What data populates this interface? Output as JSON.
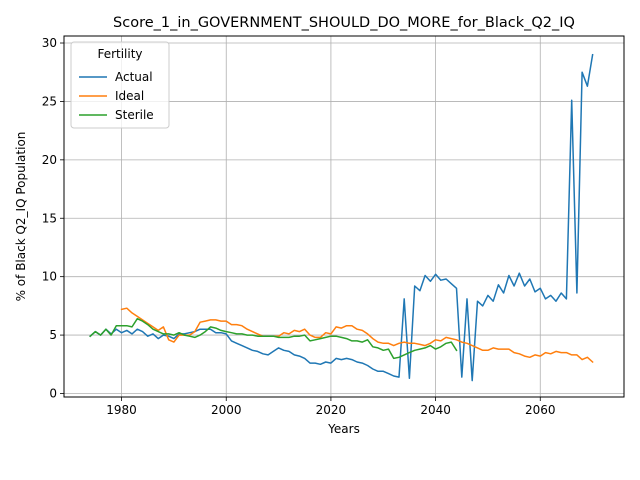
{
  "chart_data": {
    "type": "line",
    "title": "Score_1_in_GOVERNMENT_SHOULD_DO_MORE_for_Black_Q2_IQ",
    "xlabel": "Years",
    "ylabel": "% of Black Q2_IQ Population",
    "xlim": [
      1969,
      2076
    ],
    "ylim": [
      -0.3,
      30.6
    ],
    "xticks": [
      1980,
      2000,
      2020,
      2040,
      2060
    ],
    "yticks": [
      0,
      5,
      10,
      15,
      20,
      25,
      30
    ],
    "grid": true,
    "legend": {
      "title": "Fertility",
      "position": "top-left"
    },
    "series": [
      {
        "name": "Actual",
        "color": "#1f77b4",
        "points": [
          [
            1974,
            4.9
          ],
          [
            1975,
            5.3
          ],
          [
            1976,
            5.0
          ],
          [
            1977,
            5.5
          ],
          [
            1978,
            5.1
          ],
          [
            1979,
            5.5
          ],
          [
            1980,
            5.2
          ],
          [
            1981,
            5.4
          ],
          [
            1982,
            5.1
          ],
          [
            1983,
            5.5
          ],
          [
            1984,
            5.3
          ],
          [
            1985,
            4.9
          ],
          [
            1986,
            5.1
          ],
          [
            1987,
            4.7
          ],
          [
            1988,
            5.0
          ],
          [
            1989,
            4.9
          ],
          [
            1990,
            4.7
          ],
          [
            1991,
            5.1
          ],
          [
            1992,
            5.1
          ],
          [
            1993,
            5.2
          ],
          [
            1994,
            5.3
          ],
          [
            1995,
            5.5
          ],
          [
            1996,
            5.5
          ],
          [
            1997,
            5.5
          ],
          [
            1998,
            5.2
          ],
          [
            1999,
            5.2
          ],
          [
            2000,
            5.1
          ],
          [
            2001,
            4.5
          ],
          [
            2002,
            4.3
          ],
          [
            2003,
            4.1
          ],
          [
            2004,
            3.9
          ],
          [
            2005,
            3.7
          ],
          [
            2006,
            3.6
          ],
          [
            2007,
            3.4
          ],
          [
            2008,
            3.3
          ],
          [
            2009,
            3.6
          ],
          [
            2010,
            3.9
          ],
          [
            2011,
            3.7
          ],
          [
            2012,
            3.6
          ],
          [
            2013,
            3.3
          ],
          [
            2014,
            3.2
          ],
          [
            2015,
            3.0
          ],
          [
            2016,
            2.6
          ],
          [
            2017,
            2.6
          ],
          [
            2018,
            2.5
          ],
          [
            2019,
            2.7
          ],
          [
            2020,
            2.6
          ],
          [
            2021,
            3.0
          ],
          [
            2022,
            2.9
          ],
          [
            2023,
            3.0
          ],
          [
            2024,
            2.9
          ],
          [
            2025,
            2.7
          ],
          [
            2026,
            2.6
          ],
          [
            2027,
            2.4
          ],
          [
            2028,
            2.1
          ],
          [
            2029,
            1.9
          ],
          [
            2030,
            1.9
          ],
          [
            2031,
            1.7
          ],
          [
            2032,
            1.5
          ],
          [
            2033,
            1.4
          ],
          [
            2034,
            8.1
          ],
          [
            2035,
            1.3
          ],
          [
            2036,
            9.2
          ],
          [
            2037,
            8.8
          ],
          [
            2038,
            10.1
          ],
          [
            2039,
            9.6
          ],
          [
            2040,
            10.2
          ],
          [
            2041,
            9.7
          ],
          [
            2042,
            9.8
          ],
          [
            2043,
            9.4
          ],
          [
            2044,
            9.0
          ],
          [
            2045,
            1.4
          ],
          [
            2046,
            8.1
          ],
          [
            2047,
            1.1
          ],
          [
            2048,
            7.9
          ],
          [
            2049,
            7.5
          ],
          [
            2050,
            8.4
          ],
          [
            2051,
            7.9
          ],
          [
            2052,
            9.3
          ],
          [
            2053,
            8.6
          ],
          [
            2054,
            10.1
          ],
          [
            2055,
            9.2
          ],
          [
            2056,
            10.3
          ],
          [
            2057,
            9.2
          ],
          [
            2058,
            9.8
          ],
          [
            2059,
            8.7
          ],
          [
            2060,
            9.0
          ],
          [
            2061,
            8.1
          ],
          [
            2062,
            8.4
          ],
          [
            2063,
            7.9
          ],
          [
            2064,
            8.6
          ],
          [
            2065,
            8.1
          ],
          [
            2066,
            25.1
          ],
          [
            2067,
            8.6
          ],
          [
            2068,
            27.5
          ],
          [
            2069,
            26.3
          ],
          [
            2070,
            29.0
          ]
        ]
      },
      {
        "name": "Ideal",
        "color": "#ff7f0e",
        "points": [
          [
            1980,
            7.2
          ],
          [
            1981,
            7.3
          ],
          [
            1982,
            6.9
          ],
          [
            1983,
            6.6
          ],
          [
            1984,
            6.3
          ],
          [
            1985,
            6.0
          ],
          [
            1986,
            5.7
          ],
          [
            1987,
            5.4
          ],
          [
            1988,
            5.7
          ],
          [
            1989,
            4.6
          ],
          [
            1990,
            4.4
          ],
          [
            1991,
            5.0
          ],
          [
            1992,
            5.0
          ],
          [
            1993,
            5.0
          ],
          [
            1994,
            5.3
          ],
          [
            1995,
            6.1
          ],
          [
            1996,
            6.2
          ],
          [
            1997,
            6.3
          ],
          [
            1998,
            6.3
          ],
          [
            1999,
            6.2
          ],
          [
            2000,
            6.2
          ],
          [
            2001,
            5.9
          ],
          [
            2002,
            5.9
          ],
          [
            2003,
            5.8
          ],
          [
            2004,
            5.5
          ],
          [
            2005,
            5.3
          ],
          [
            2006,
            5.1
          ],
          [
            2007,
            4.9
          ],
          [
            2008,
            4.9
          ],
          [
            2009,
            4.9
          ],
          [
            2010,
            4.9
          ],
          [
            2011,
            5.2
          ],
          [
            2012,
            5.1
          ],
          [
            2013,
            5.4
          ],
          [
            2014,
            5.3
          ],
          [
            2015,
            5.5
          ],
          [
            2016,
            5.0
          ],
          [
            2017,
            4.8
          ],
          [
            2018,
            4.8
          ],
          [
            2019,
            5.2
          ],
          [
            2020,
            5.1
          ],
          [
            2021,
            5.7
          ],
          [
            2022,
            5.6
          ],
          [
            2023,
            5.8
          ],
          [
            2024,
            5.8
          ],
          [
            2025,
            5.5
          ],
          [
            2026,
            5.4
          ],
          [
            2027,
            5.1
          ],
          [
            2028,
            4.7
          ],
          [
            2029,
            4.4
          ],
          [
            2030,
            4.3
          ],
          [
            2031,
            4.3
          ],
          [
            2032,
            4.1
          ],
          [
            2033,
            4.3
          ],
          [
            2034,
            4.4
          ],
          [
            2035,
            4.3
          ],
          [
            2036,
            4.3
          ],
          [
            2037,
            4.2
          ],
          [
            2038,
            4.1
          ],
          [
            2039,
            4.3
          ],
          [
            2040,
            4.6
          ],
          [
            2041,
            4.5
          ],
          [
            2042,
            4.8
          ],
          [
            2043,
            4.7
          ],
          [
            2044,
            4.6
          ],
          [
            2045,
            4.4
          ],
          [
            2046,
            4.3
          ],
          [
            2047,
            4.1
          ],
          [
            2048,
            3.9
          ],
          [
            2049,
            3.7
          ],
          [
            2050,
            3.7
          ],
          [
            2051,
            3.9
          ],
          [
            2052,
            3.8
          ],
          [
            2053,
            3.8
          ],
          [
            2054,
            3.8
          ],
          [
            2055,
            3.5
          ],
          [
            2056,
            3.4
          ],
          [
            2057,
            3.2
          ],
          [
            2058,
            3.1
          ],
          [
            2059,
            3.3
          ],
          [
            2060,
            3.2
          ],
          [
            2061,
            3.5
          ],
          [
            2062,
            3.4
          ],
          [
            2063,
            3.6
          ],
          [
            2064,
            3.5
          ],
          [
            2065,
            3.5
          ],
          [
            2066,
            3.3
          ],
          [
            2067,
            3.3
          ],
          [
            2068,
            2.9
          ],
          [
            2069,
            3.1
          ],
          [
            2070,
            2.7
          ]
        ]
      },
      {
        "name": "Sterile",
        "color": "#2ca02c",
        "points": [
          [
            1974,
            4.9
          ],
          [
            1975,
            5.3
          ],
          [
            1976,
            5.0
          ],
          [
            1977,
            5.5
          ],
          [
            1978,
            5.0
          ],
          [
            1979,
            5.8
          ],
          [
            1980,
            5.8
          ],
          [
            1981,
            5.8
          ],
          [
            1982,
            5.7
          ],
          [
            1983,
            6.4
          ],
          [
            1984,
            6.2
          ],
          [
            1985,
            5.9
          ],
          [
            1986,
            5.5
          ],
          [
            1987,
            5.3
          ],
          [
            1988,
            5.1
          ],
          [
            1989,
            5.1
          ],
          [
            1990,
            5.0
          ],
          [
            1991,
            5.2
          ],
          [
            1992,
            5.0
          ],
          [
            1993,
            4.9
          ],
          [
            1994,
            4.8
          ],
          [
            1995,
            5.0
          ],
          [
            1996,
            5.3
          ],
          [
            1997,
            5.7
          ],
          [
            1998,
            5.6
          ],
          [
            1999,
            5.4
          ],
          [
            2000,
            5.3
          ],
          [
            2001,
            5.2
          ],
          [
            2002,
            5.1
          ],
          [
            2003,
            5.1
          ],
          [
            2004,
            5.0
          ],
          [
            2005,
            5.0
          ],
          [
            2006,
            4.9
          ],
          [
            2007,
            4.9
          ],
          [
            2008,
            4.9
          ],
          [
            2009,
            4.9
          ],
          [
            2010,
            4.8
          ],
          [
            2011,
            4.8
          ],
          [
            2012,
            4.8
          ],
          [
            2013,
            4.9
          ],
          [
            2014,
            4.9
          ],
          [
            2015,
            5.0
          ],
          [
            2016,
            4.5
          ],
          [
            2017,
            4.6
          ],
          [
            2018,
            4.7
          ],
          [
            2019,
            4.8
          ],
          [
            2020,
            4.9
          ],
          [
            2021,
            4.9
          ],
          [
            2022,
            4.8
          ],
          [
            2023,
            4.7
          ],
          [
            2024,
            4.5
          ],
          [
            2025,
            4.5
          ],
          [
            2026,
            4.4
          ],
          [
            2027,
            4.6
          ],
          [
            2028,
            4.0
          ],
          [
            2029,
            3.9
          ],
          [
            2030,
            3.7
          ],
          [
            2031,
            3.8
          ],
          [
            2032,
            3.0
          ],
          [
            2033,
            3.1
          ],
          [
            2034,
            3.3
          ],
          [
            2035,
            3.5
          ],
          [
            2036,
            3.7
          ],
          [
            2037,
            3.8
          ],
          [
            2038,
            3.9
          ],
          [
            2039,
            4.1
          ],
          [
            2040,
            3.8
          ],
          [
            2041,
            4.0
          ],
          [
            2042,
            4.3
          ],
          [
            2043,
            4.4
          ],
          [
            2044,
            3.7
          ]
        ]
      }
    ]
  }
}
